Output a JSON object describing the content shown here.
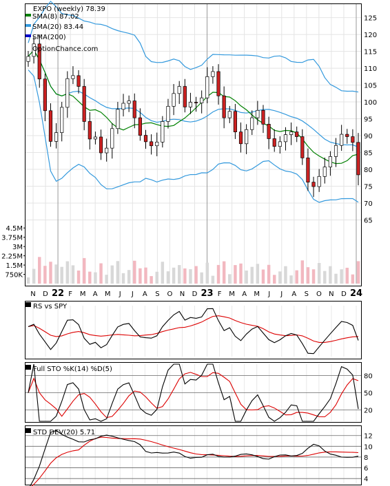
{
  "chart_data": [
    {
      "panel": "price",
      "type": "candlestick",
      "title": "EXPO (weekly) 78.39",
      "watermark": "OptionChance.com",
      "legend": [
        {
          "label": "SMA(8) 87.02",
          "color": "#008000"
        },
        {
          "label": "SMA(20) 83.44",
          "color": "#3399dd"
        },
        {
          "label": "SMA(200)",
          "color": "#0000cc"
        }
      ],
      "legend_placement": "top-left",
      "y_ticks": [
        65,
        70,
        75,
        80,
        85,
        90,
        95,
        100,
        105,
        110,
        115,
        120,
        125
      ],
      "ylim": [
        60,
        129
      ],
      "x_ticks": [
        "N",
        "D",
        "22",
        "F",
        "M",
        "A",
        "M",
        "J",
        "J",
        "A",
        "S",
        "O",
        "N",
        "D",
        "23",
        "F",
        "M",
        "A",
        "M",
        "J",
        "J",
        "A",
        "S",
        "O",
        "N",
        "D",
        "24"
      ],
      "close": [
        113.5,
        117.2,
        106.8,
        97.4,
        88.3,
        90.9,
        98.4,
        106.9,
        107.8,
        104.6,
        94.2,
        89.0,
        89.6,
        84.9,
        86.3,
        92.1,
        97.8,
        99.6,
        100.3,
        95.3,
        90.1,
        88.2,
        87.0,
        88.1,
        94.2,
        98.7,
        102.5,
        104.6,
        98.5,
        99.9,
        99.7,
        101.2,
        107.5,
        109.0,
        101.8,
        95.3,
        97.2,
        91.1,
        87.6,
        91.8,
        95.3,
        97.5,
        93.4,
        89.1,
        86.8,
        88.2,
        90.3,
        91.1,
        89.7,
        83.4,
        76.2,
        74.9,
        77.9,
        80.7,
        83.8,
        87.1,
        90.4,
        89.7,
        88.0,
        78.39
      ],
      "volume_ylim": [
        0,
        4900000
      ],
      "volume_ticks": [
        {
          "v": 750000,
          "label": "750K"
        },
        {
          "v": 1500000,
          "label": "1.5M"
        },
        {
          "v": 2250000,
          "label": "2.25M"
        },
        {
          "v": 3000000,
          "label": "3M"
        },
        {
          "v": 3750000,
          "label": "3.75M"
        },
        {
          "v": 4500000,
          "label": "4.5M"
        }
      ]
    },
    {
      "panel": "rs",
      "type": "line",
      "title": "RS vs SPY",
      "series": [
        {
          "name": "RS vs SPY",
          "color": "#000000"
        },
        {
          "name": "",
          "color": "#dd0000"
        }
      ]
    },
    {
      "panel": "stoch",
      "type": "line",
      "title": "Full STO %K(14) %D(5)",
      "ylim": [
        0,
        100
      ],
      "y_ticks": [
        20,
        50,
        80
      ],
      "series": [
        {
          "name": "%K(14)",
          "color": "#000000"
        },
        {
          "name": "%D(5)",
          "color": "#dd0000"
        }
      ]
    },
    {
      "panel": "stddev",
      "type": "line",
      "title": "STD DEV(20) 5.71",
      "ylim": [
        3,
        13.5
      ],
      "y_ticks": [
        4,
        6,
        8,
        10,
        12
      ],
      "series": [
        {
          "name": "STD DEV(20)",
          "color": "#000000"
        },
        {
          "name": "",
          "color": "#dd0000"
        }
      ]
    }
  ]
}
